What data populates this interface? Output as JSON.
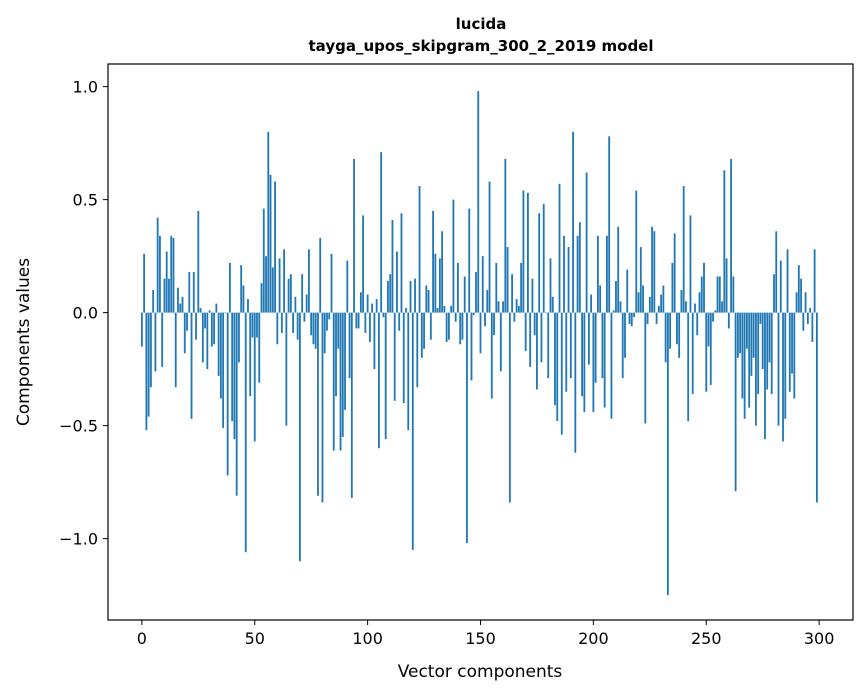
{
  "chart_data": {
    "type": "bar",
    "title_lines": [
      "lucida",
      "tayga_upos_skipgram_300_2_2019 model"
    ],
    "xlabel": "Vector components",
    "ylabel": "Components values",
    "xlim": [
      -15,
      315
    ],
    "ylim": [
      -1.36,
      1.1
    ],
    "xticks": [
      0,
      50,
      100,
      150,
      200,
      250,
      300
    ],
    "yticks": [
      1.0,
      0.5,
      0.0,
      -0.5,
      -1.0
    ],
    "ytick_labels": [
      "1.0",
      "0.5",
      "0.0",
      "−0.5",
      "−1.0"
    ],
    "grid": false,
    "bar_color": "#1f77b4",
    "x": "component index 0..299",
    "values": [
      -0.15,
      0.26,
      -0.52,
      -0.46,
      -0.33,
      0.1,
      -0.26,
      0.42,
      0.34,
      -0.24,
      0.15,
      0.27,
      0.15,
      0.34,
      0.33,
      -0.33,
      0.11,
      0.04,
      0.07,
      -0.18,
      -0.08,
      0.18,
      -0.47,
      0.18,
      -0.12,
      0.45,
      0.02,
      -0.22,
      -0.07,
      -0.25,
      0.01,
      -0.15,
      -0.14,
      0.04,
      -0.28,
      -0.38,
      -0.51,
      0.0,
      -0.72,
      0.22,
      -0.48,
      -0.56,
      -0.81,
      -0.22,
      0.21,
      0.12,
      -1.06,
      0.06,
      -0.37,
      -0.11,
      -0.57,
      -0.11,
      -0.31,
      0.13,
      0.46,
      0.25,
      0.8,
      0.61,
      0.2,
      0.58,
      -0.14,
      0.24,
      -0.09,
      0.28,
      -0.5,
      0.15,
      0.17,
      -0.09,
      0.07,
      -0.12,
      -1.1,
      0.17,
      -0.04,
      0.08,
      0.28,
      -0.1,
      -0.14,
      -0.16,
      -0.81,
      0.33,
      -0.84,
      -0.18,
      -0.08,
      -0.03,
      0.26,
      -0.61,
      -0.37,
      -0.16,
      -0.61,
      -0.55,
      -0.43,
      0.23,
      -0.29,
      -0.82,
      0.68,
      -0.07,
      -0.07,
      0.09,
      0.43,
      -0.09,
      0.08,
      -0.13,
      0.04,
      -0.25,
      0.06,
      -0.6,
      0.71,
      -0.02,
      -0.56,
      0.14,
      0.17,
      0.41,
      -0.39,
      0.27,
      -0.08,
      0.44,
      -0.4,
      0.02,
      -0.52,
      0.14,
      -1.05,
      0.15,
      -0.33,
      0.56,
      -0.2,
      -0.16,
      0.12,
      0.1,
      -0.12,
      0.45,
      0.26,
      0.02,
      0.24,
      0.36,
      0.03,
      -0.13,
      -0.12,
      0.03,
      0.5,
      -0.04,
      0.22,
      -0.14,
      -0.12,
      0.16,
      -1.02,
      0.46,
      -0.3,
      -0.01,
      0.18,
      0.98,
      -0.18,
      0.25,
      -0.06,
      0.1,
      0.58,
      -0.38,
      -0.1,
      0.22,
      0.05,
      -0.26,
      0.05,
      0.68,
      0.29,
      -0.84,
      0.17,
      -0.04,
      0.06,
      0.03,
      0.22,
      0.54,
      -0.17,
      0.53,
      -0.24,
      0.15,
      -0.1,
      -0.34,
      0.44,
      -0.22,
      0.48,
      0.0,
      -0.29,
      0.24,
      0.07,
      -0.41,
      -0.48,
      0.57,
      -0.54,
      0.34,
      -0.35,
      0.29,
      -0.29,
      0.8,
      -0.62,
      0.34,
      0.4,
      -0.37,
      -0.44,
      0.62,
      -0.23,
      0.08,
      -0.44,
      -0.31,
      0.34,
      0.12,
      -0.29,
      -0.42,
      0.34,
      0.78,
      -0.47,
      0.01,
      0.14,
      0.38,
      0.05,
      -0.29,
      -0.2,
      0.19,
      -0.05,
      -0.06,
      -0.02,
      0.54,
      0.09,
      0.29,
      0.12,
      -0.49,
      -0.05,
      0.07,
      0.38,
      0.36,
      -0.05,
      0.03,
      0.08,
      0.12,
      -0.22,
      -1.25,
      -0.16,
      0.22,
      0.35,
      -0.14,
      -0.2,
      0.1,
      0.56,
      0.05,
      -0.48,
      0.43,
      -0.36,
      0.04,
      -0.1,
      0.09,
      0.16,
      0.22,
      -0.35,
      -0.15,
      -0.32,
      -0.04,
      0.01,
      0.16,
      0.16,
      0.05,
      0.63,
      0.24,
      -0.07,
      0.68,
      0.16,
      -0.79,
      -0.2,
      -0.18,
      -0.38,
      -0.47,
      -0.16,
      -0.42,
      -0.28,
      -0.2,
      -0.5,
      -0.36,
      -0.05,
      -0.25,
      -0.56,
      -0.34,
      -0.22,
      -0.36,
      0.17,
      0.36,
      -0.5,
      0.23,
      -0.57,
      -0.47,
      0.28,
      -0.35,
      -0.27,
      -0.38,
      0.09,
      0.21,
      0.15,
      -0.08,
      0.09,
      -0.05,
      0.02,
      -0.13,
      0.28,
      -0.84
    ]
  }
}
